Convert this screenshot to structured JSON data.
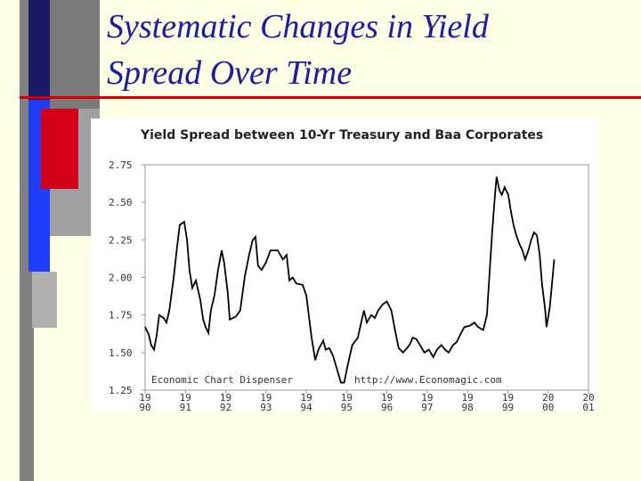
{
  "slide_title": "Systematic Changes in Yield Spread Over Time",
  "chart_data": {
    "type": "line",
    "title": "Yield Spread between 10-Yr Treasury and Baa Corporates",
    "annotations": [
      "Economic Chart Dispenser",
      "http://www.Economagic.com"
    ],
    "color": "#000000",
    "xlim": [
      1990,
      2001
    ],
    "ylim": [
      1.25,
      2.75
    ],
    "yticks": [
      1.25,
      {
        "value": 1.5,
        "label": "1.50"
      },
      1.75,
      {
        "value": 2,
        "label": "2.00"
      },
      2.25,
      {
        "value": 2.5,
        "label": "2.50"
      },
      2.75
    ],
    "xticks": [
      {
        "value": 1990,
        "label": "19\n90"
      },
      {
        "value": 1991,
        "label": "19\n91"
      },
      {
        "value": 1992,
        "label": "19\n92"
      },
      {
        "value": 1993,
        "label": "19\n93"
      },
      {
        "value": 1994,
        "label": "19\n94"
      },
      {
        "value": 1995,
        "label": "19\n95"
      },
      {
        "value": 1996,
        "label": "19\n96"
      },
      {
        "value": 1997,
        "label": "19\n97"
      },
      {
        "value": 1998,
        "label": "19\n98"
      },
      {
        "value": 1999,
        "label": "19\n99"
      },
      {
        "value": 2000,
        "label": "20\n00"
      },
      {
        "value": 2001,
        "label": "20\n01"
      }
    ],
    "x": [
      1990.0,
      1990.09,
      1990.15,
      1990.22,
      1990.29,
      1990.35,
      1990.46,
      1990.53,
      1990.6,
      1990.71,
      1990.79,
      1990.86,
      1990.97,
      1991.04,
      1991.1,
      1991.17,
      1991.26,
      1991.37,
      1991.44,
      1991.5,
      1991.57,
      1991.63,
      1991.72,
      1991.81,
      1991.9,
      1991.96,
      1992.05,
      1992.1,
      1992.25,
      1992.36,
      1992.47,
      1992.58,
      1992.67,
      1992.74,
      1992.8,
      1992.89,
      1993.0,
      1993.11,
      1993.29,
      1993.42,
      1993.51,
      1993.58,
      1993.66,
      1993.75,
      1993.91,
      1994.0,
      1994.06,
      1994.13,
      1994.22,
      1994.3,
      1994.42,
      1994.48,
      1994.57,
      1994.66,
      1994.75,
      1994.86,
      1994.94,
      1995.03,
      1995.14,
      1995.28,
      1995.36,
      1995.43,
      1995.5,
      1995.61,
      1995.7,
      1995.78,
      1995.89,
      1996.0,
      1996.11,
      1996.2,
      1996.29,
      1996.4,
      1996.56,
      1996.64,
      1996.73,
      1996.82,
      1996.93,
      1997.04,
      1997.15,
      1997.24,
      1997.35,
      1997.44,
      1997.53,
      1997.64,
      1997.73,
      1997.84,
      1997.92,
      1998.06,
      1998.17,
      1998.26,
      1998.39,
      1998.48,
      1998.54,
      1998.61,
      1998.68,
      1998.72,
      1998.79,
      1998.85,
      1998.92,
      1999.01,
      1999.07,
      1999.14,
      1999.21,
      1999.29,
      1999.36,
      1999.43,
      1999.51,
      1999.58,
      1999.65,
      1999.72,
      1999.79,
      1999.85,
      1999.92,
      1999.96,
      2000.04,
      2000.11,
      2000.15
    ],
    "values": [
      1.67,
      1.62,
      1.55,
      1.52,
      1.62,
      1.75,
      1.73,
      1.7,
      1.78,
      2.0,
      2.2,
      2.35,
      2.37,
      2.25,
      2.05,
      1.93,
      1.98,
      1.85,
      1.72,
      1.67,
      1.63,
      1.78,
      1.88,
      2.05,
      2.18,
      2.1,
      1.9,
      1.72,
      1.74,
      1.78,
      2.0,
      2.15,
      2.25,
      2.27,
      2.08,
      2.05,
      2.1,
      2.18,
      2.18,
      2.12,
      2.15,
      1.98,
      2.0,
      1.96,
      1.95,
      1.88,
      1.75,
      1.6,
      1.45,
      1.52,
      1.58,
      1.52,
      1.53,
      1.48,
      1.4,
      1.3,
      1.3,
      1.42,
      1.55,
      1.6,
      1.7,
      1.78,
      1.7,
      1.75,
      1.73,
      1.78,
      1.82,
      1.84,
      1.78,
      1.65,
      1.53,
      1.5,
      1.55,
      1.6,
      1.59,
      1.55,
      1.5,
      1.52,
      1.47,
      1.52,
      1.55,
      1.52,
      1.5,
      1.55,
      1.57,
      1.63,
      1.67,
      1.68,
      1.7,
      1.67,
      1.65,
      1.75,
      2.0,
      2.3,
      2.55,
      2.67,
      2.58,
      2.55,
      2.6,
      2.55,
      2.45,
      2.35,
      2.28,
      2.22,
      2.18,
      2.12,
      2.18,
      2.25,
      2.3,
      2.28,
      2.15,
      1.95,
      1.8,
      1.67,
      1.8,
      2.0,
      2.12
    ]
  }
}
